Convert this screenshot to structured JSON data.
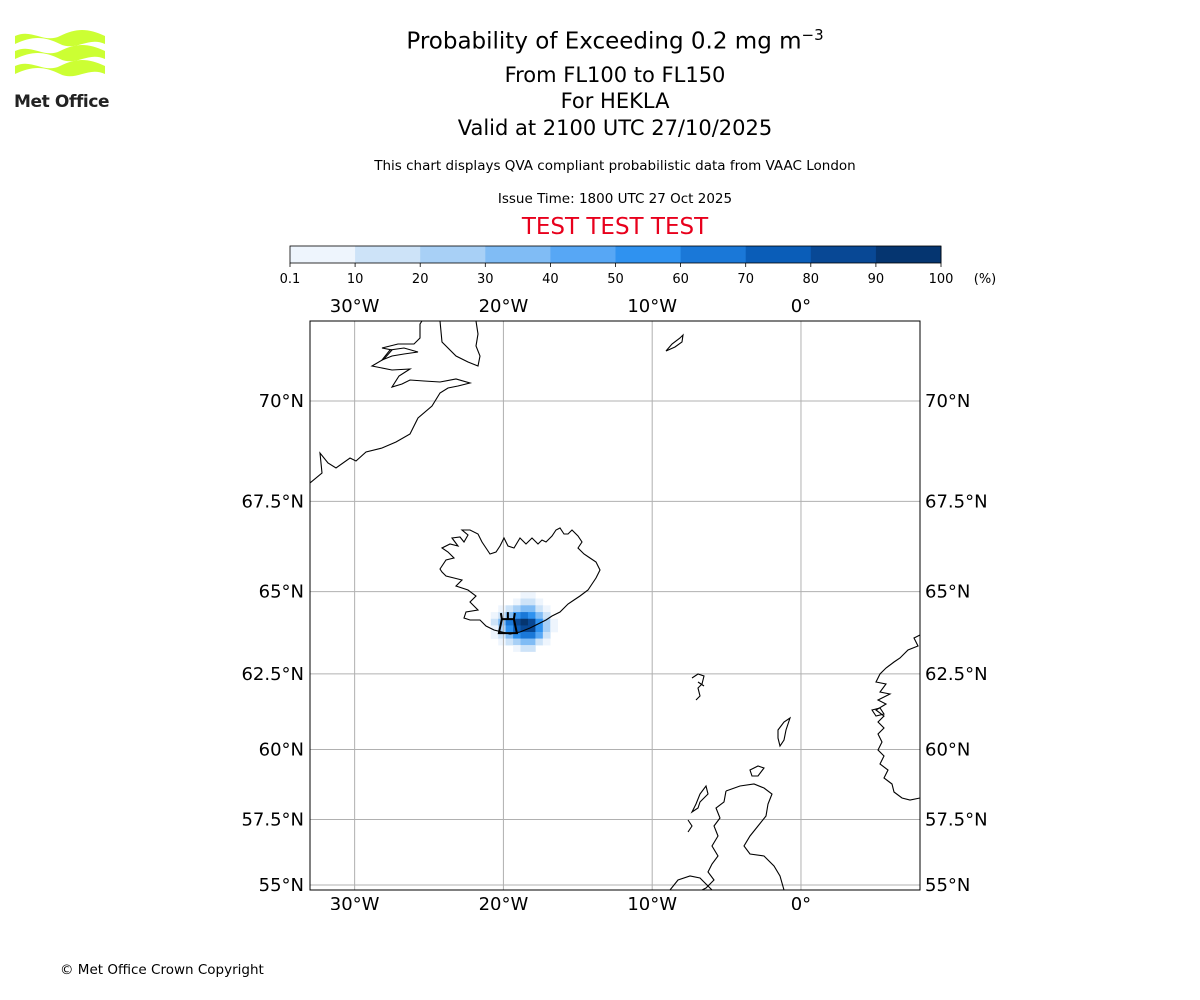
{
  "logo": {
    "text": "Met Office",
    "color": "#ccff33"
  },
  "title": {
    "line1_prefix": "Probability of Exceeding 0.2 mg m",
    "line1_exponent": "−3",
    "line2": "From FL100 to FL150",
    "line3": "For HEKLA",
    "line4": "Valid at 2100 UTC 27/10/2025",
    "subtitle": "This chart displays QVA compliant probabilistic data from VAAC London",
    "issue_time": "Issue Time: 1800 UTC 27 Oct 2025",
    "test_banner": "TEST TEST TEST",
    "test_color": "#e8001c"
  },
  "colorbar": {
    "ticks": [
      "0.1",
      "10",
      "20",
      "30",
      "40",
      "50",
      "60",
      "70",
      "80",
      "90",
      "100"
    ],
    "unit": "(%)",
    "colors": [
      "#eef5fd",
      "#cde3f8",
      "#a8d0f6",
      "#80bcf5",
      "#57a7f5",
      "#2f92f0",
      "#1a78d8",
      "#0a5db8",
      "#084895",
      "#053570"
    ]
  },
  "map": {
    "lon_range": [
      -33,
      8
    ],
    "lat_range": [
      54.8,
      71.8
    ],
    "lon_ticks": [
      {
        "value": -30,
        "label": "30°W"
      },
      {
        "value": -20,
        "label": "20°W"
      },
      {
        "value": -10,
        "label": "10°W"
      },
      {
        "value": 0,
        "label": "0°"
      }
    ],
    "lat_ticks": [
      {
        "value": 70,
        "label": "70°N"
      },
      {
        "value": 67.5,
        "label": "67.5°N"
      },
      {
        "value": 65,
        "label": "65°N"
      },
      {
        "value": 62.5,
        "label": "62.5°N"
      },
      {
        "value": 60,
        "label": "60°N"
      },
      {
        "value": 57.5,
        "label": "57.5°N"
      },
      {
        "value": 55,
        "label": "55°N"
      }
    ],
    "volcano": {
      "name": "HEKLA",
      "lon": -19.7,
      "lat": 63.98
    },
    "probability_cells": [
      {
        "lon": -18.6,
        "lat": 64.9,
        "p": 5
      },
      {
        "lon": -18.1,
        "lat": 64.9,
        "p": 5
      },
      {
        "lon": -19.1,
        "lat": 64.7,
        "p": 8
      },
      {
        "lon": -18.6,
        "lat": 64.7,
        "p": 15
      },
      {
        "lon": -18.1,
        "lat": 64.7,
        "p": 12
      },
      {
        "lon": -17.6,
        "lat": 64.7,
        "p": 6
      },
      {
        "lon": -20.1,
        "lat": 64.5,
        "p": 6
      },
      {
        "lon": -19.6,
        "lat": 64.5,
        "p": 14
      },
      {
        "lon": -19.1,
        "lat": 64.5,
        "p": 25
      },
      {
        "lon": -18.6,
        "lat": 64.5,
        "p": 35
      },
      {
        "lon": -18.1,
        "lat": 64.5,
        "p": 30
      },
      {
        "lon": -17.6,
        "lat": 64.5,
        "p": 15
      },
      {
        "lon": -17.1,
        "lat": 64.5,
        "p": 5
      },
      {
        "lon": -20.6,
        "lat": 64.3,
        "p": 5
      },
      {
        "lon": -20.1,
        "lat": 64.3,
        "p": 15
      },
      {
        "lon": -19.6,
        "lat": 64.3,
        "p": 38
      },
      {
        "lon": -19.1,
        "lat": 64.3,
        "p": 55
      },
      {
        "lon": -18.6,
        "lat": 64.3,
        "p": 65
      },
      {
        "lon": -18.1,
        "lat": 64.3,
        "p": 58
      },
      {
        "lon": -17.6,
        "lat": 64.3,
        "p": 35
      },
      {
        "lon": -17.1,
        "lat": 64.3,
        "p": 12
      },
      {
        "lon": -20.6,
        "lat": 64.1,
        "p": 12
      },
      {
        "lon": -20.1,
        "lat": 64.1,
        "p": 30
      },
      {
        "lon": -19.6,
        "lat": 64.1,
        "p": 62
      },
      {
        "lon": -19.1,
        "lat": 64.1,
        "p": 85
      },
      {
        "lon": -18.6,
        "lat": 64.1,
        "p": 92
      },
      {
        "lon": -18.1,
        "lat": 64.1,
        "p": 82
      },
      {
        "lon": -17.6,
        "lat": 64.1,
        "p": 52
      },
      {
        "lon": -17.1,
        "lat": 64.1,
        "p": 22
      },
      {
        "lon": -16.6,
        "lat": 64.1,
        "p": 6
      },
      {
        "lon": -20.6,
        "lat": 63.9,
        "p": 8
      },
      {
        "lon": -20.1,
        "lat": 63.9,
        "p": 28
      },
      {
        "lon": -19.6,
        "lat": 63.9,
        "p": 55
      },
      {
        "lon": -19.1,
        "lat": 63.9,
        "p": 78
      },
      {
        "lon": -18.6,
        "lat": 63.9,
        "p": 88
      },
      {
        "lon": -18.1,
        "lat": 63.9,
        "p": 80
      },
      {
        "lon": -17.6,
        "lat": 63.9,
        "p": 58
      },
      {
        "lon": -17.1,
        "lat": 63.9,
        "p": 28
      },
      {
        "lon": -16.6,
        "lat": 63.9,
        "p": 8
      },
      {
        "lon": -20.6,
        "lat": 63.7,
        "p": 5
      },
      {
        "lon": -20.1,
        "lat": 63.7,
        "p": 15
      },
      {
        "lon": -19.6,
        "lat": 63.7,
        "p": 32
      },
      {
        "lon": -19.1,
        "lat": 63.7,
        "p": 52
      },
      {
        "lon": -18.6,
        "lat": 63.7,
        "p": 65
      },
      {
        "lon": -18.1,
        "lat": 63.7,
        "p": 60
      },
      {
        "lon": -17.6,
        "lat": 63.7,
        "p": 42
      },
      {
        "lon": -17.1,
        "lat": 63.7,
        "p": 18
      },
      {
        "lon": -20.1,
        "lat": 63.5,
        "p": 6
      },
      {
        "lon": -19.6,
        "lat": 63.5,
        "p": 14
      },
      {
        "lon": -19.1,
        "lat": 63.5,
        "p": 28
      },
      {
        "lon": -18.6,
        "lat": 63.5,
        "p": 38
      },
      {
        "lon": -18.1,
        "lat": 63.5,
        "p": 32
      },
      {
        "lon": -17.6,
        "lat": 63.5,
        "p": 18
      },
      {
        "lon": -17.1,
        "lat": 63.5,
        "p": 6
      },
      {
        "lon": -19.1,
        "lat": 63.3,
        "p": 8
      },
      {
        "lon": -18.6,
        "lat": 63.3,
        "p": 14
      },
      {
        "lon": -18.1,
        "lat": 63.3,
        "p": 10
      }
    ]
  },
  "copyright": "© Met Office Crown Copyright"
}
